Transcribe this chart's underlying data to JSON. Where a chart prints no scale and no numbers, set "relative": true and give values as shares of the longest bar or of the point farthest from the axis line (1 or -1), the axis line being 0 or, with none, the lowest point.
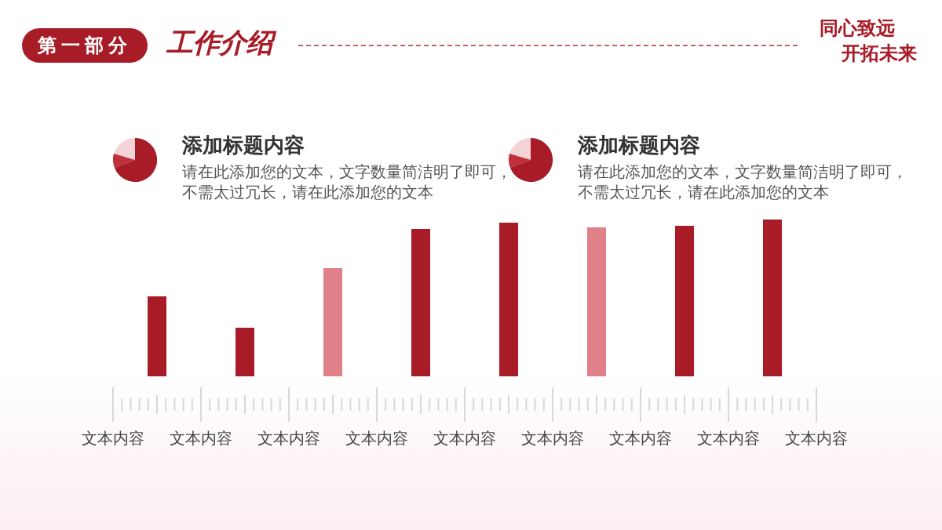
{
  "chart_data": {
    "type": "bar",
    "title": "工作介绍",
    "subtitle": "第一部分",
    "relative": true,
    "annotations": [
      "同心致远",
      "开拓未来",
      "添加标题内容",
      "请在此添加您的文本，文字数量简洁明了即可，",
      "不需太过冗长，请在此添加您的文本",
      "添加标题内容",
      "请在此添加您的文本，文字数量简洁明了即可，",
      "不需太过冗长，请在此添加您的文本",
      "文本内容",
      "文本内容",
      "文本内容",
      "文本内容",
      "文本内容",
      "文本内容",
      "文本内容",
      "文本内容",
      "文本内容"
    ],
    "categories": [
      null,
      null,
      null,
      null,
      null,
      null,
      null,
      null
    ],
    "values": [
      0.51,
      0.31,
      0.69,
      0.94,
      0.98,
      0.95,
      0.96,
      1
    ],
    "colors": [
      "#a81c28",
      "#a81c28",
      "#e08088",
      "#a81c28",
      "#a81c28",
      "#e08088",
      "#a81c28",
      "#a81c28"
    ]
  }
}
